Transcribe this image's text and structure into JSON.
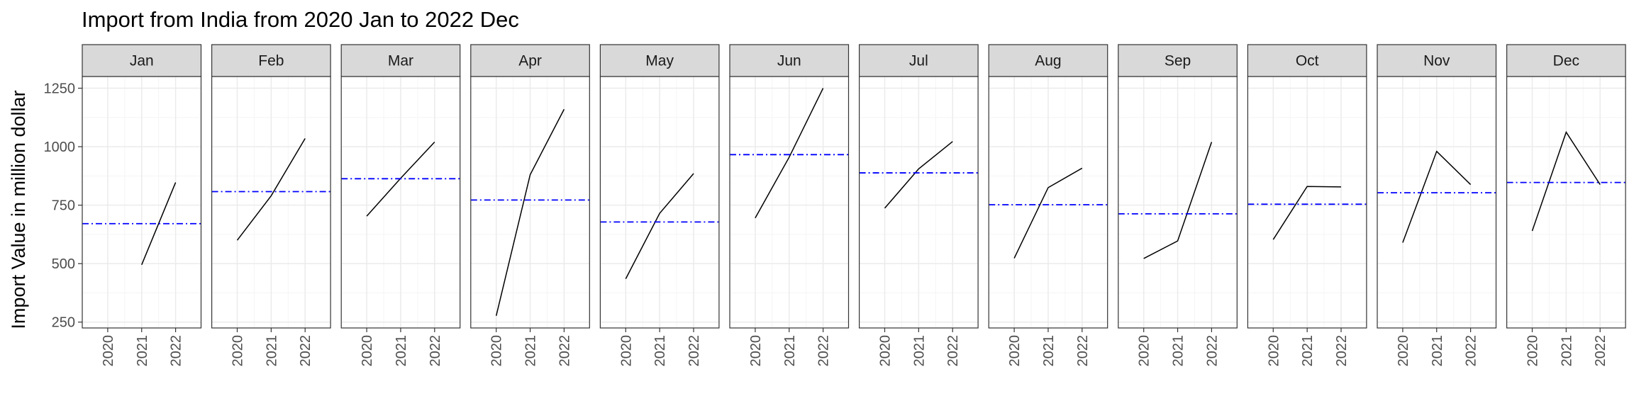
{
  "chart_data": {
    "type": "line",
    "title": "Import from India from 2020 Jan to 2022 Dec",
    "xlabel": "",
    "ylabel": "Import Value in million dollar",
    "x": [
      "2020",
      "2021",
      "2022"
    ],
    "ylim": [
      225,
      1300
    ],
    "yticks": [
      250,
      500,
      750,
      1000,
      1250
    ],
    "grid": true,
    "facets": [
      {
        "label": "Jan",
        "values": [
          null,
          495,
          847
        ],
        "mean": 671
      },
      {
        "label": "Feb",
        "values": [
          600,
          790,
          1035
        ],
        "mean": 808
      },
      {
        "label": "Mar",
        "values": [
          703,
          865,
          1020
        ],
        "mean": 863
      },
      {
        "label": "Apr",
        "values": [
          277,
          880,
          1160
        ],
        "mean": 772
      },
      {
        "label": "May",
        "values": [
          435,
          715,
          885
        ],
        "mean": 678
      },
      {
        "label": "Jun",
        "values": [
          695,
          955,
          1250
        ],
        "mean": 966
      },
      {
        "label": "Jul",
        "values": [
          737,
          905,
          1022
        ],
        "mean": 888
      },
      {
        "label": "Aug",
        "values": [
          523,
          825,
          908
        ],
        "mean": 752
      },
      {
        "label": "Sep",
        "values": [
          522,
          597,
          1020
        ],
        "mean": 713
      },
      {
        "label": "Oct",
        "values": [
          603,
          830,
          828
        ],
        "mean": 754
      },
      {
        "label": "Nov",
        "values": [
          590,
          980,
          838
        ],
        "mean": 803
      },
      {
        "label": "Dec",
        "values": [
          640,
          1062,
          838
        ],
        "mean": 847
      }
    ],
    "colors": {
      "line": "#000000",
      "mean_line": "#0000ff",
      "strip_fill": "#d9d9d9",
      "grid_major": "#ebebeb",
      "grid_minor": "#f5f5f5",
      "border": "#333333"
    }
  }
}
